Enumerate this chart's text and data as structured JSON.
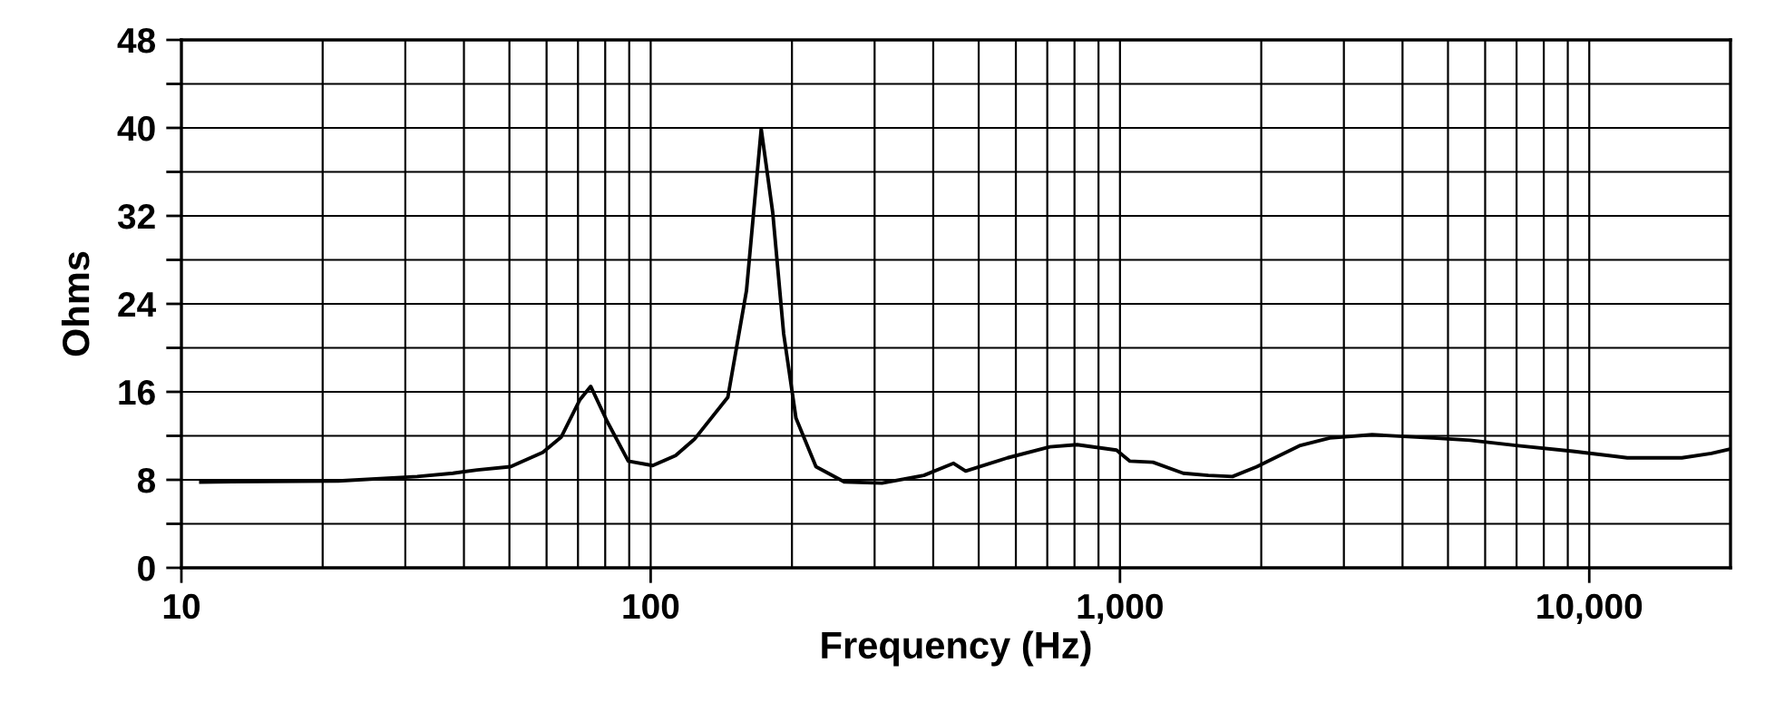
{
  "chart_data": {
    "type": "line",
    "xlabel": "Frequency (Hz)",
    "ylabel": "Ohms",
    "log": "x",
    "grid": true,
    "marker": "none",
    "line_style": "solid",
    "xlim": [
      10,
      20000
    ],
    "ylim": [
      0,
      48
    ],
    "xticks": [
      10,
      {
        "value": 20,
        "label": null
      },
      {
        "value": 30,
        "label": null
      },
      {
        "value": 40,
        "label": null
      },
      {
        "value": 50,
        "label": null
      },
      {
        "value": 60,
        "label": null
      },
      {
        "value": 70,
        "label": null
      },
      {
        "value": 80,
        "label": null
      },
      {
        "value": 90,
        "label": null
      },
      100,
      {
        "value": 200,
        "label": null
      },
      {
        "value": 300,
        "label": null
      },
      {
        "value": 400,
        "label": null
      },
      {
        "value": 500,
        "label": null
      },
      {
        "value": 600,
        "label": null
      },
      {
        "value": 700,
        "label": null
      },
      {
        "value": 800,
        "label": null
      },
      {
        "value": 900,
        "label": null
      },
      {
        "value": 1000,
        "label": "1,000"
      },
      {
        "value": 2000,
        "label": null
      },
      {
        "value": 3000,
        "label": null
      },
      {
        "value": 4000,
        "label": null
      },
      {
        "value": 5000,
        "label": null
      },
      {
        "value": 6000,
        "label": null
      },
      {
        "value": 7000,
        "label": null
      },
      {
        "value": 8000,
        "label": null
      },
      {
        "value": 9000,
        "label": null
      },
      {
        "value": 10000,
        "label": "10,000"
      },
      {
        "value": 20000,
        "label": null
      }
    ],
    "yticks": [
      0,
      {
        "value": 4,
        "label": null
      },
      8,
      {
        "value": 12,
        "label": null
      },
      16,
      {
        "value": 20,
        "label": null
      },
      24,
      {
        "value": 28,
        "label": null
      },
      32,
      {
        "value": 36,
        "label": null
      },
      40,
      {
        "value": 44,
        "label": null
      },
      48
    ],
    "series": [
      {
        "color": "#000000",
        "x": [
          11,
          21.6,
          31.8,
          37.9,
          42.7,
          50.3,
          58.9,
          64.5,
          70.7,
          74.5,
          80.8,
          89.6,
          101,
          113,
          124,
          146,
          160,
          172,
          182,
          192,
          204,
          225,
          259,
          311,
          382,
          442,
          469,
          576,
          709,
          810,
          983,
          1050,
          1176,
          1364,
          1543,
          1737,
          1958,
          2412,
          2800,
          3446,
          4651,
          5569,
          7055,
          9220,
          12050,
          15750,
          18200,
          19950
        ],
        "values": [
          7.8,
          7.9,
          8.3,
          8.6,
          8.9,
          9.2,
          10.5,
          11.9,
          15.3,
          16.5,
          13.3,
          9.7,
          9.3,
          10.2,
          11.7,
          15.5,
          25.2,
          39.9,
          32.3,
          21.3,
          13.6,
          9.2,
          7.8,
          7.7,
          8.4,
          9.5,
          8.8,
          10.0,
          11.0,
          11.2,
          10.7,
          9.7,
          9.6,
          8.6,
          8.4,
          8.3,
          9.2,
          11.1,
          11.8,
          12.1,
          11.8,
          11.6,
          11.1,
          10.6,
          10.0,
          10.0,
          10.4,
          10.8
        ]
      }
    ]
  }
}
